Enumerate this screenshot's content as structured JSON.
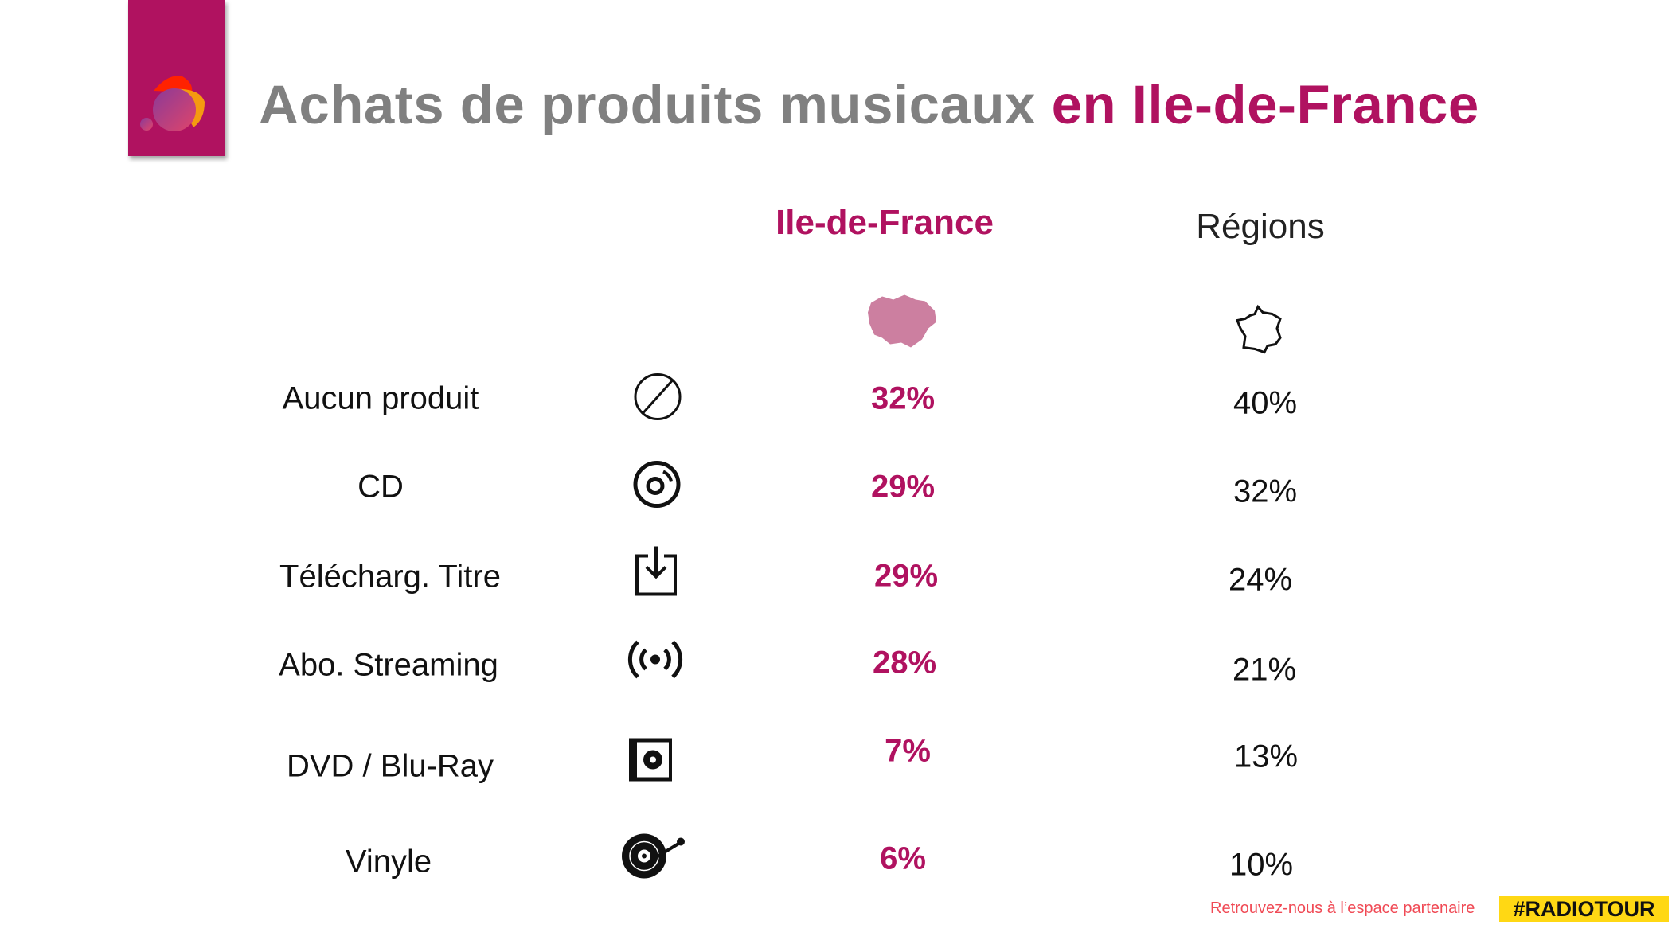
{
  "title": {
    "main": "Achats de produits musicaux ",
    "accent": "en Ile-de-France"
  },
  "columns": {
    "idf": "Ile-de-France",
    "regions": "Régions"
  },
  "rows": [
    {
      "label": "Aucun produit",
      "icon": "no-product-icon",
      "idf": "32%",
      "regions": "40%"
    },
    {
      "label": "CD",
      "icon": "cd-icon",
      "idf": "29%",
      "regions": "32%"
    },
    {
      "label": "Télécharg. Titre",
      "icon": "download-icon",
      "idf": "29%",
      "regions": "24%"
    },
    {
      "label": "Abo. Streaming",
      "icon": "streaming-icon",
      "idf": "28%",
      "regions": "21%"
    },
    {
      "label": "DVD / Blu-Ray",
      "icon": "dvd-icon",
      "idf": "7%",
      "regions": "13%"
    },
    {
      "label": "Vinyle",
      "icon": "vinyl-icon",
      "idf": "6%",
      "regions": "10%"
    }
  ],
  "footer": {
    "text": "Retrouvez-nous à l’espace partenaire",
    "tag": "#RADIOTOUR"
  },
  "colors": {
    "accent": "#b01260",
    "gray": "#808080",
    "tag_bg": "#ffd814",
    "footer_text": "#f04a55"
  }
}
